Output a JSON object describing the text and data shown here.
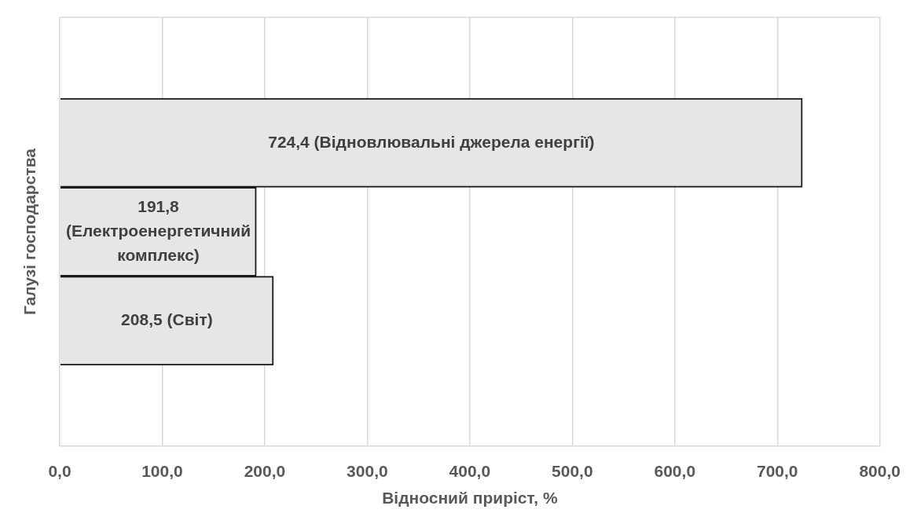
{
  "chart_data": {
    "type": "bar",
    "orientation": "horizontal",
    "xlabel": "Відносний приріст, %",
    "ylabel": "Галузі господарства",
    "categories": [
      null,
      null,
      null
    ],
    "values": [
      724.4,
      191.8,
      208.5
    ],
    "value_labels": [
      "724,4 (Відновлювальні джерела енергії)",
      "191,8 (Електроенергетичний комплекс)",
      "208,5 (Світ)"
    ],
    "color": "#e6e6e6",
    "xlim": [
      0,
      800
    ],
    "xticks": [
      {
        "value": 0,
        "label": "0,0"
      },
      {
        "value": 100,
        "label": "100,0"
      },
      {
        "value": 200,
        "label": "200,0"
      },
      {
        "value": 300,
        "label": "300,0"
      },
      {
        "value": 400,
        "label": "400,0"
      },
      {
        "value": 500,
        "label": "500,0"
      },
      {
        "value": 600,
        "label": "600,0"
      },
      {
        "value": 700,
        "label": "700,0"
      },
      {
        "value": 800,
        "label": "800,0"
      }
    ],
    "grid": "x"
  }
}
